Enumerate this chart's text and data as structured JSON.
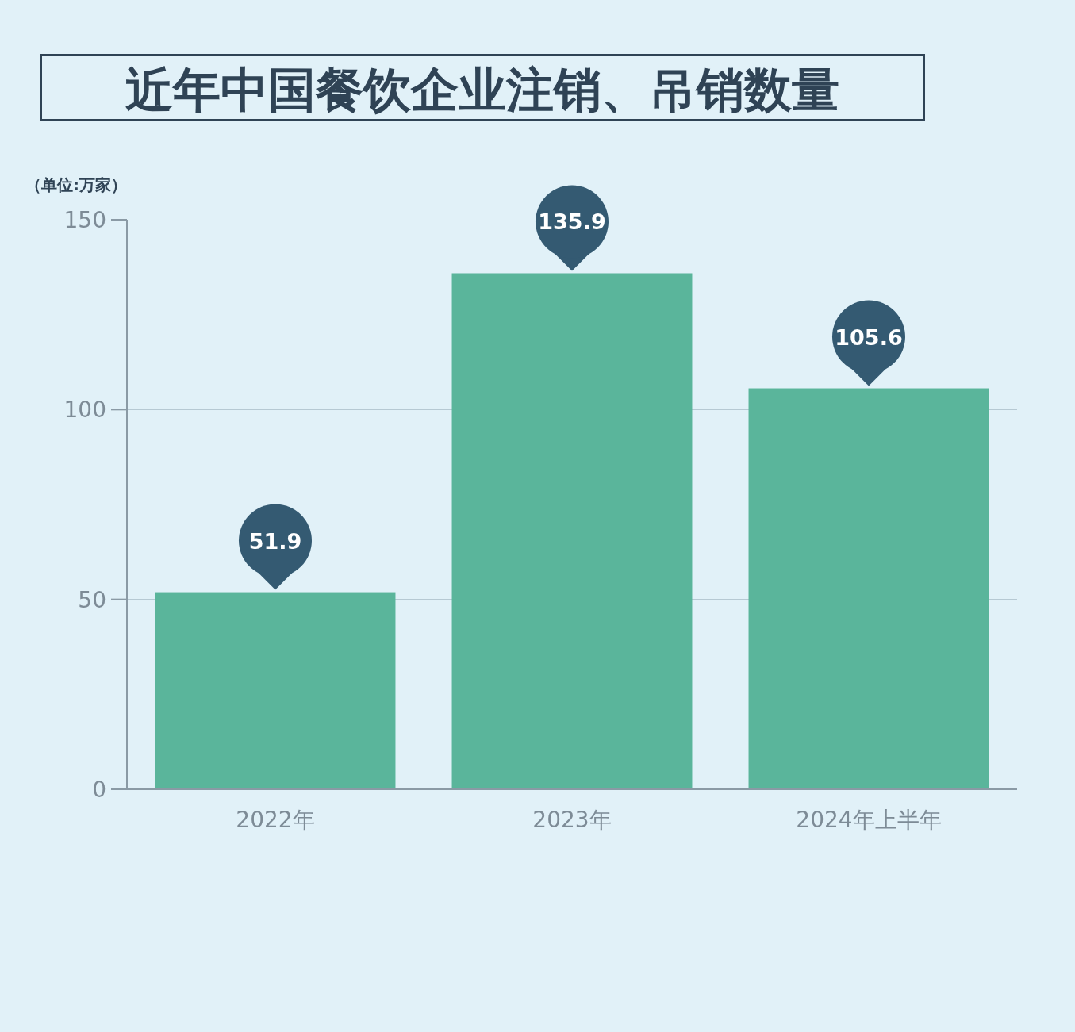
{
  "chart_data": {
    "type": "bar",
    "title": "近年中国餐饮企业注销、吊销数量",
    "ylabel": "（单位:万家）",
    "categories": [
      "2022年",
      "2023年",
      "2024年上半年"
    ],
    "values": [
      51.9,
      135.9,
      105.6
    ],
    "color": "#5ab59b",
    "ylim": [
      0,
      150
    ],
    "yticks": [
      0,
      50,
      100,
      150
    ],
    "grid": "y",
    "data_labels": true
  }
}
